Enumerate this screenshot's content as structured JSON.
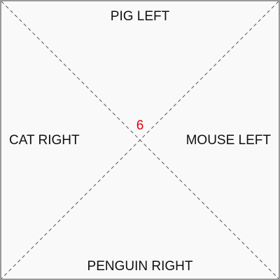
{
  "zones": {
    "top": "PIG LEFT",
    "left": "CAT RIGHT",
    "right": "MOUSE LEFT",
    "bottom": "PENGUIN RIGHT"
  },
  "center_number": "6",
  "colors": {
    "background": "#f9f9f9",
    "border": "#999999",
    "diagonal": "#555555",
    "label_text": "#111111",
    "center_number": "#e8000b"
  }
}
